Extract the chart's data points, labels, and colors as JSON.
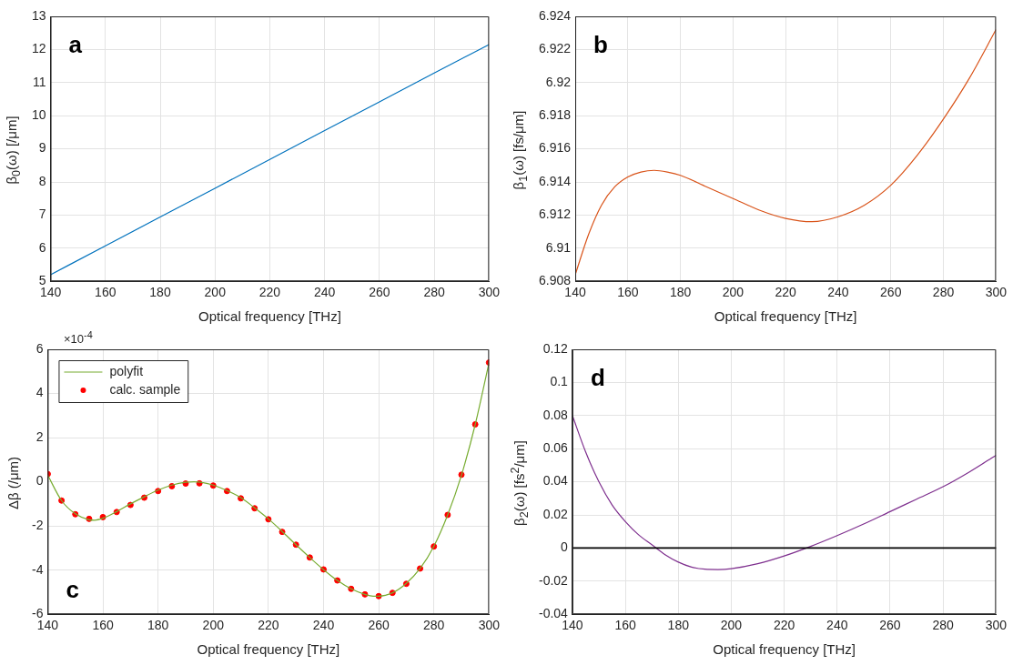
{
  "chart_data": [
    {
      "type": "line",
      "ylabel": "β$_{0}$(ω) [/μm]",
      "xlabel": "Optical frequency [THz]",
      "annotations": [
        "a"
      ],
      "x": [
        140,
        160,
        180,
        200,
        220,
        240,
        260,
        280,
        300
      ],
      "values": [
        5.2,
        6.07,
        6.94,
        7.81,
        8.68,
        9.55,
        10.42,
        11.29,
        12.15
      ],
      "color": "#0072bd",
      "xlim": [
        140,
        300
      ],
      "xticks": [
        140,
        160,
        180,
        200,
        220,
        240,
        260,
        280,
        300
      ],
      "ylim": [
        5,
        13
      ],
      "yticks": [
        5,
        6,
        7,
        8,
        9,
        10,
        11,
        12,
        13
      ],
      "grid": true
    },
    {
      "type": "line",
      "ylabel": "β$_{1}$(ω) [fs/μm]",
      "xlabel": "Optical frequency [THz]",
      "annotations": [
        "b"
      ],
      "x": [
        140,
        145,
        150,
        155,
        160,
        165,
        170,
        175,
        180,
        190,
        200,
        210,
        220,
        230,
        240,
        250,
        260,
        270,
        280,
        290,
        300
      ],
      "values": [
        6.9084,
        6.9108,
        6.9126,
        6.9137,
        6.9143,
        6.9146,
        6.9147,
        6.9146,
        6.9144,
        6.9137,
        6.913,
        6.9123,
        6.9118,
        6.9116,
        6.9119,
        6.9126,
        6.9138,
        6.9156,
        6.9178,
        6.9203,
        6.9232
      ],
      "color": "#d95319",
      "xlim": [
        140,
        300
      ],
      "xticks": [
        140,
        160,
        180,
        200,
        220,
        240,
        260,
        280,
        300
      ],
      "ylim": [
        6.908,
        6.924
      ],
      "yticks": [
        6.908,
        6.91,
        6.912,
        6.914,
        6.916,
        6.918,
        6.92,
        6.922,
        6.924
      ],
      "grid": true
    },
    {
      "type": "line",
      "ylabel": "Δβ (/μm)",
      "xlabel": "Optical frequency [THz]",
      "annotations": [
        "c",
        "×10$^{-4}$"
      ],
      "legend": "top left",
      "series": [
        {
          "name": "polyfit",
          "type": "line",
          "color": "#77ac30",
          "x": [
            140,
            145,
            150,
            155,
            157,
            160,
            165,
            170,
            175,
            180,
            185,
            190,
            193,
            196,
            200,
            205,
            210,
            215,
            220,
            225,
            230,
            235,
            240,
            245,
            250,
            255,
            258,
            260,
            265,
            270,
            275,
            280,
            285,
            290,
            295,
            300
          ],
          "values": [
            0.3,
            -0.85,
            -1.45,
            -1.72,
            -1.74,
            -1.65,
            -1.35,
            -1.0,
            -0.68,
            -0.38,
            -0.15,
            -0.02,
            0.0,
            -0.03,
            -0.15,
            -0.4,
            -0.72,
            -1.18,
            -1.68,
            -2.25,
            -2.85,
            -3.43,
            -3.98,
            -4.47,
            -4.85,
            -5.1,
            -5.18,
            -5.18,
            -5.03,
            -4.6,
            -3.93,
            -2.92,
            -1.5,
            0.3,
            2.6,
            5.4
          ]
        },
        {
          "name": "calc. sample",
          "type": "scatter",
          "marker": "circle",
          "color": "#ff0000",
          "x": [
            140,
            145,
            150,
            155,
            160,
            165,
            170,
            175,
            180,
            185,
            190,
            195,
            200,
            205,
            210,
            215,
            220,
            225,
            230,
            235,
            240,
            245,
            250,
            255,
            260,
            265,
            270,
            275,
            280,
            285,
            290,
            295,
            300
          ],
          "values": [
            0.35,
            -0.85,
            -1.47,
            -1.68,
            -1.6,
            -1.37,
            -1.05,
            -0.72,
            -0.42,
            -0.2,
            -0.08,
            -0.07,
            -0.17,
            -0.42,
            -0.75,
            -1.2,
            -1.7,
            -2.27,
            -2.85,
            -3.43,
            -3.97,
            -4.47,
            -4.85,
            -5.1,
            -5.18,
            -5.03,
            -4.62,
            -3.93,
            -2.93,
            -1.5,
            0.32,
            2.6,
            5.4
          ]
        }
      ],
      "xlim": [
        140,
        300
      ],
      "xticks": [
        140,
        160,
        180,
        200,
        220,
        240,
        260,
        280,
        300
      ],
      "ylim": [
        -6,
        6
      ],
      "yticks": [
        -6,
        -4,
        -2,
        0,
        2,
        4,
        6
      ],
      "grid": true
    },
    {
      "type": "line",
      "ylabel": "β$_{2}$(ω) [fs$^{2}$/μm]",
      "xlabel": "Optical frequency [THz]",
      "annotations": [
        "d"
      ],
      "x": [
        140,
        145,
        150,
        155,
        160,
        165,
        170,
        175,
        180,
        185,
        190,
        195,
        200,
        210,
        220,
        230,
        240,
        250,
        260,
        270,
        280,
        290,
        300
      ],
      "values": [
        0.08,
        0.058,
        0.04,
        0.026,
        0.016,
        0.008,
        0.002,
        -0.004,
        -0.0085,
        -0.0115,
        -0.0128,
        -0.013,
        -0.0125,
        -0.0095,
        -0.0048,
        0.001,
        0.0075,
        0.0145,
        0.022,
        0.0295,
        0.037,
        0.046,
        0.056
      ],
      "color": "#7e2f8e",
      "ref_lines": [
        {
          "axis": "y",
          "value": 0,
          "color": "#000000"
        }
      ],
      "xlim": [
        140,
        300
      ],
      "xticks": [
        140,
        160,
        180,
        200,
        220,
        240,
        260,
        280,
        300
      ],
      "ylim": [
        -0.04,
        0.12
      ],
      "yticks": [
        -0.04,
        -0.02,
        0,
        0.02,
        0.04,
        0.06,
        0.08,
        0.1,
        0.12
      ],
      "grid": true
    }
  ]
}
